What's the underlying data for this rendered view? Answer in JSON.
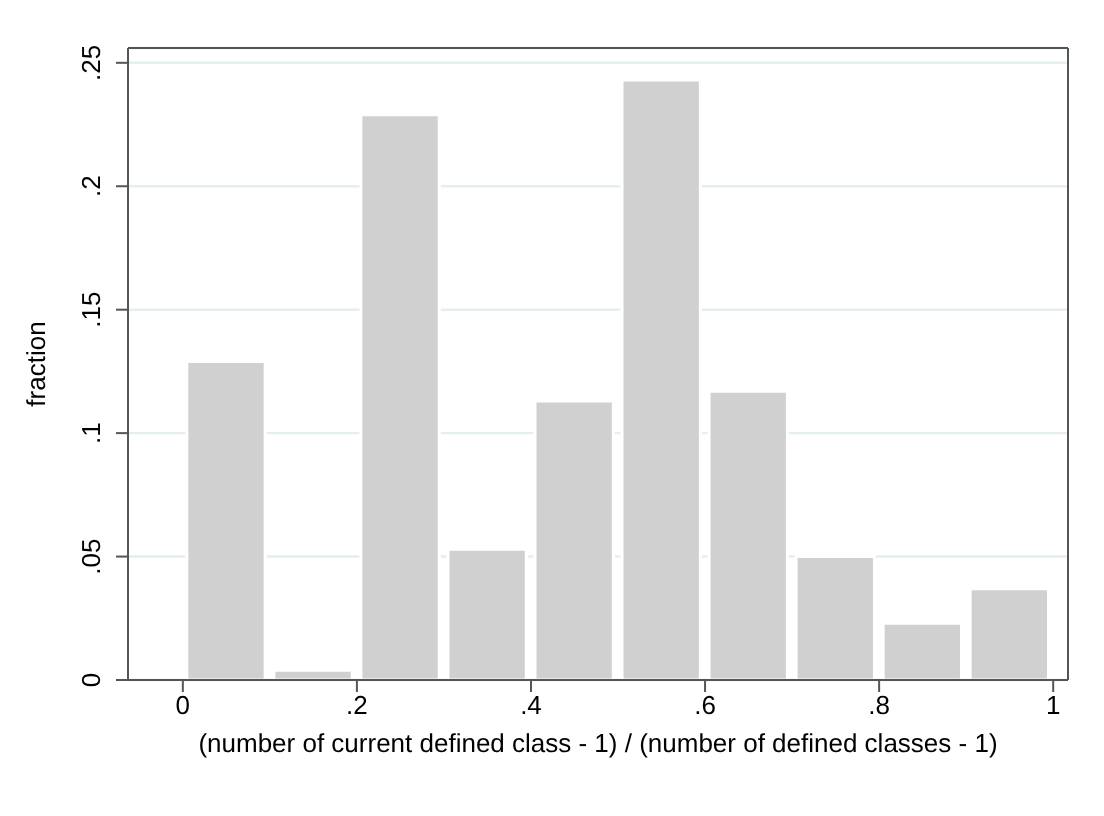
{
  "chart_data": {
    "type": "histogram",
    "xlabel": "(number of current defined class - 1) / (number of defined classes - 1)",
    "ylabel": "fraction",
    "bins": [
      0,
      0.1,
      0.2,
      0.3,
      0.4,
      0.5,
      0.6,
      0.7,
      0.8,
      0.9,
      1
    ],
    "values": [
      0.129,
      0.004,
      0.229,
      0.053,
      0.113,
      0.243,
      0.117,
      0.05,
      0.023,
      0.037
    ],
    "color": "#d0d0d0",
    "xlim": [
      -0.063,
      1.017
    ],
    "xticks": [
      {
        "value": 0,
        "label": "0"
      },
      {
        "value": 0.2,
        "label": ".2"
      },
      {
        "value": 0.4,
        "label": ".4"
      },
      {
        "value": 0.6,
        "label": ".6"
      },
      {
        "value": 0.8,
        "label": ".8"
      },
      {
        "value": 1,
        "label": "1"
      }
    ],
    "ylim": [
      0,
      0.256
    ],
    "yticks": [
      {
        "value": 0,
        "label": "0"
      },
      {
        "value": 0.05,
        "label": ".05"
      },
      {
        "value": 0.1,
        "label": ".1"
      },
      {
        "value": 0.15,
        "label": ".15"
      },
      {
        "value": 0.2,
        "label": ".2"
      },
      {
        "value": 0.25,
        "label": ".25"
      }
    ],
    "grid": "y"
  }
}
